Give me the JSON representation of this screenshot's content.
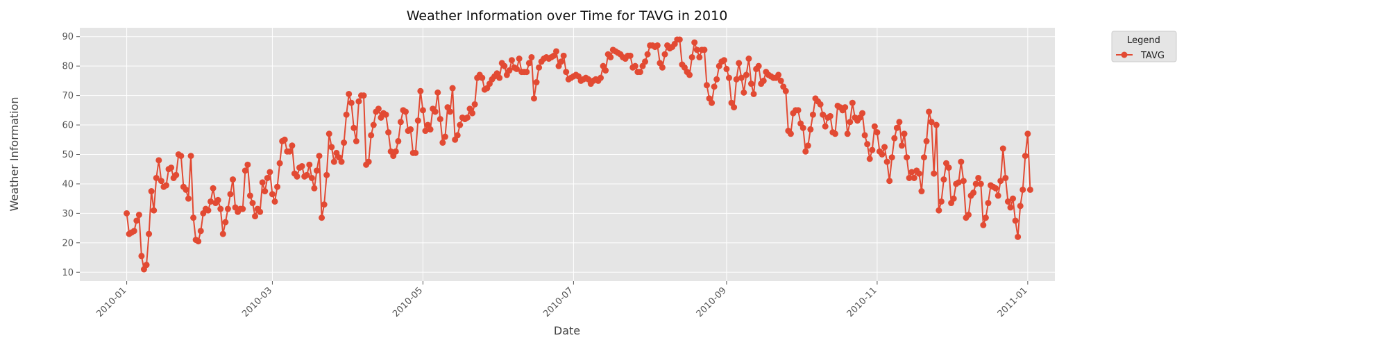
{
  "chart_data": {
    "type": "line",
    "title": "Weather Information over Time for TAVG in 2010",
    "xlabel": "Date",
    "ylabel": "Weather Information",
    "xlim": [
      "2009-12-13",
      "2011-01-12"
    ],
    "ylim": [
      7,
      93
    ],
    "x_ticks": [
      "2010-01",
      "2010-03",
      "2010-05",
      "2010-07",
      "2010-09",
      "2010-11",
      "2011-01"
    ],
    "y_ticks": [
      10,
      20,
      30,
      40,
      50,
      60,
      70,
      80,
      90
    ],
    "grid": true,
    "legend": {
      "title": "Legend",
      "placement": "outside-top-right"
    },
    "colors": {
      "series": "#e24a33",
      "plot_background": "#e5e5e5",
      "grid": "#ffffff"
    },
    "x_start": "2010-01-01",
    "x_step": "1 day",
    "series": [
      {
        "name": "TAVG",
        "marker": "circle",
        "values": [
          30,
          23,
          23.5,
          24,
          27.5,
          29.5,
          15.5,
          11,
          12.5,
          23,
          37.5,
          31,
          42,
          48,
          41,
          39,
          39.5,
          45,
          45.5,
          42,
          43,
          50,
          49.5,
          39,
          38,
          35,
          49.5,
          28.5,
          21,
          20.5,
          24,
          30,
          31.5,
          31,
          34,
          38.5,
          33.5,
          34.5,
          31.5,
          23,
          27,
          31.5,
          36.5,
          41.5,
          32,
          30.5,
          31.5,
          31.5,
          44.5,
          46.5,
          36,
          33.5,
          29,
          31.5,
          30.5,
          40.5,
          37.5,
          42,
          44,
          36.5,
          34,
          39,
          47,
          54.5,
          55,
          51,
          51,
          53,
          43.5,
          42.5,
          45.5,
          46,
          42.5,
          43,
          46.5,
          42,
          38.5,
          44.5,
          49.5,
          28.5,
          33,
          43,
          57,
          52.5,
          47.5,
          50.5,
          49,
          47.5,
          54,
          63.5,
          70.5,
          67.5,
          59,
          54.5,
          68,
          70,
          70,
          46.5,
          47.5,
          56.5,
          60,
          64.5,
          65.5,
          62.5,
          64,
          63.5,
          57.5,
          51,
          49.5,
          51,
          54.5,
          61,
          65,
          64.5,
          58,
          58.5,
          50.5,
          50.5,
          61.5,
          71.5,
          65,
          58,
          60,
          58.5,
          65.5,
          64.5,
          71,
          62,
          54,
          56,
          66,
          64.5,
          72.5,
          55,
          56.5,
          60,
          62.5,
          62,
          62.5,
          65.5,
          64,
          67,
          76,
          77,
          76,
          72,
          72.5,
          74,
          75.5,
          76.5,
          77.5,
          76,
          81,
          80,
          77,
          78.5,
          82,
          79.5,
          79,
          82.5,
          78,
          78,
          78,
          81,
          83,
          69,
          74.5,
          79.5,
          81.5,
          82.5,
          83,
          82.5,
          83,
          83.5,
          85,
          80,
          81.5,
          83.5,
          78,
          75.5,
          76,
          76.5,
          77,
          76.5,
          75,
          75.5,
          76,
          75.5,
          74,
          75,
          75.5,
          75,
          76,
          80,
          78.5,
          84,
          83,
          85.5,
          85,
          84.5,
          84,
          83,
          82.5,
          83.5,
          83.5,
          79.5,
          80,
          78,
          78,
          80,
          81.5,
          84,
          87,
          87,
          86.5,
          87,
          81,
          79.5,
          84,
          87,
          86,
          86.5,
          87.5,
          89,
          89,
          80.5,
          79.5,
          78,
          77,
          83,
          88,
          85.5,
          83,
          85.5,
          85.5,
          73.5,
          69,
          67.5,
          73,
          75.5,
          80,
          81.5,
          82,
          79,
          76,
          67.5,
          66,
          75.5,
          81,
          76,
          71,
          77,
          82.5,
          74,
          70.5,
          79,
          80,
          74,
          75,
          78,
          77,
          76.5,
          76,
          76,
          77,
          75,
          73,
          71.5,
          58,
          57,
          64,
          65,
          65,
          60.5,
          59,
          51,
          53,
          58.5,
          63.5,
          69,
          68,
          67,
          63.5,
          59.5,
          62.5,
          63,
          57.5,
          57,
          66.5,
          66,
          65,
          66,
          57,
          61,
          67.5,
          62.5,
          61.5,
          62.5,
          64,
          56.5,
          53.5,
          48.5,
          51.5,
          59.5,
          57.5,
          51,
          50,
          52.5,
          47.5,
          41,
          49,
          55.5,
          59,
          61,
          53,
          57,
          49,
          42,
          44,
          42,
          44.5,
          43.5,
          37.5,
          49,
          54.5,
          64.5,
          61,
          43.5,
          60,
          31,
          34,
          41.5,
          47,
          45.5,
          33.5,
          35,
          40,
          40.5,
          47.5,
          41,
          28.5,
          29.5,
          36,
          37,
          40,
          42,
          40,
          26,
          28.5,
          33.5,
          39.5,
          39,
          38.5,
          36,
          41,
          52,
          42,
          34,
          32,
          35,
          27.5,
          22,
          32.5,
          38,
          49.5,
          57,
          38
        ]
      }
    ]
  }
}
